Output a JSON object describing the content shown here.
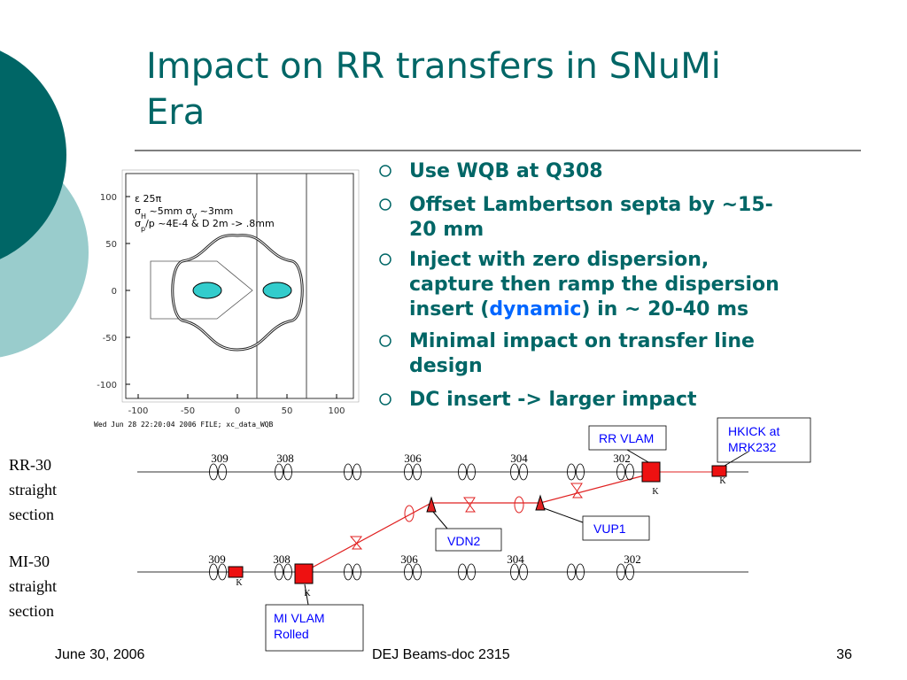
{
  "title": [
    "Impact on RR transfers in SNuMi",
    "Era"
  ],
  "bullets": [
    [
      [
        "Use WQB at Q308"
      ]
    ],
    [
      [
        "Offset Lambertson septa by ~15-"
      ],
      [
        "20 mm"
      ]
    ],
    [
      [
        "Inject with zero dispersion,"
      ],
      [
        "capture then ramp the dispersion"
      ],
      [
        "insert (",
        "dynamic",
        ") in ~ 20-40 ms"
      ]
    ],
    [
      [
        "Minimal impact on transfer line"
      ],
      [
        "design"
      ]
    ],
    [
      [
        "DC insert -> larger impact"
      ]
    ]
  ],
  "plot": {
    "yticks": [
      100,
      50,
      0,
      -50,
      -100
    ],
    "xticks": [
      -100,
      -50,
      0,
      50,
      100
    ],
    "legend": [
      [
        "ε  25π"
      ],
      [
        "σ",
        "H",
        " ~5mm σ",
        "V",
        " ~3mm"
      ],
      [
        "σ",
        "p",
        "/p ~4E-4 & D 2m -> .8mm"
      ]
    ],
    "footer": "Wed Jun 28 22:20:04 2006 FILE; xc_data_WQB"
  },
  "diagram": {
    "rr_label": [
      "RR-30",
      "straight",
      "section"
    ],
    "mi_label": [
      "MI-30",
      "straight",
      "section"
    ],
    "rr_quads": [
      "309",
      "308",
      "306",
      "304",
      "302"
    ],
    "mi_quads": [
      "309",
      "308",
      "306",
      "304",
      "302"
    ],
    "callouts": {
      "rr_vlam": [
        "RR VLAM"
      ],
      "hkick": [
        "HKICK at",
        "MRK232"
      ],
      "vdn2": [
        "VDN2"
      ],
      "vup1": [
        "VUP1"
      ],
      "mi_vlam": [
        "MI VLAM",
        "Rolled"
      ]
    },
    "kickers": [
      "K",
      "K",
      "K",
      "K"
    ]
  },
  "footer": {
    "date": "June 30, 2006",
    "doc": "DEJ Beams-doc 2315",
    "page": "36"
  }
}
